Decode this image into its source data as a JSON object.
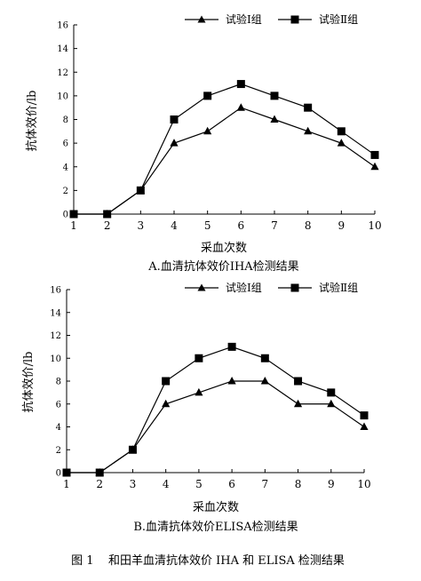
{
  "figure_caption": "图 1    和田羊血清抗体效价 IHA 和 ELISA 检测结果",
  "chart_data": [
    {
      "type": "line",
      "title": "A.血清抗体效价IHA检测结果",
      "xlabel": "采血次数",
      "ylabel": "抗体效价/lb",
      "x": [
        1,
        2,
        3,
        4,
        5,
        6,
        7,
        8,
        9,
        10
      ],
      "xlim": [
        1,
        10
      ],
      "ylim": [
        0,
        16
      ],
      "yticks": [
        0,
        2,
        4,
        6,
        8,
        10,
        12,
        14,
        16
      ],
      "legend_position": "top-right",
      "grid": false,
      "series": [
        {
          "name": "试验Ⅰ组",
          "marker": "triangle",
          "values": [
            0,
            0,
            2,
            6,
            7,
            9,
            8,
            7,
            6,
            4
          ]
        },
        {
          "name": "试验Ⅱ组",
          "marker": "square",
          "values": [
            0,
            0,
            2,
            8,
            10,
            11,
            10,
            9,
            7,
            5
          ]
        }
      ]
    },
    {
      "type": "line",
      "title": "B.血清抗体效价ELISA检测结果",
      "xlabel": "采血次数",
      "ylabel": "抗体效价/lb",
      "x": [
        1,
        2,
        3,
        4,
        5,
        6,
        7,
        8,
        9,
        10
      ],
      "xlim": [
        1,
        10
      ],
      "ylim": [
        0,
        16
      ],
      "yticks": [
        0,
        2,
        4,
        6,
        8,
        10,
        12,
        14,
        16
      ],
      "legend_position": "top-right",
      "grid": false,
      "series": [
        {
          "name": "试验Ⅰ组",
          "marker": "triangle",
          "values": [
            0,
            0,
            2,
            6,
            7,
            8,
            8,
            6,
            6,
            4
          ]
        },
        {
          "name": "试验Ⅱ组",
          "marker": "square",
          "values": [
            0,
            0,
            2,
            8,
            10,
            11,
            10,
            8,
            7,
            5
          ]
        }
      ]
    }
  ]
}
